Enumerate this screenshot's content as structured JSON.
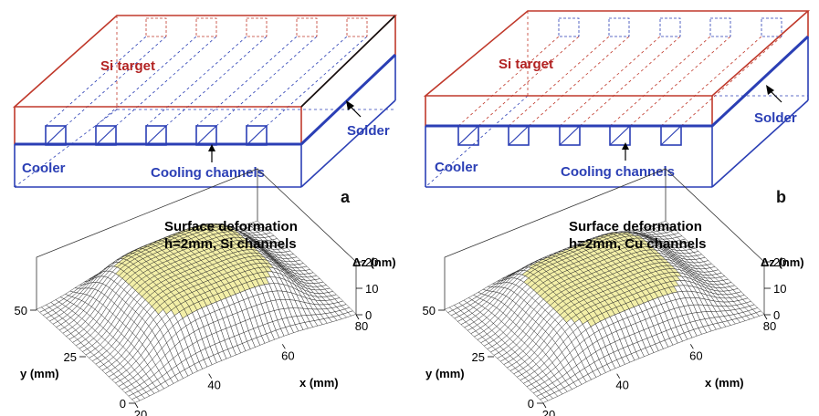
{
  "diagram_a": {
    "panel_label": "a",
    "target_label": "Si target",
    "solder_label": "Solder",
    "cooler_label": "Cooler",
    "channels_label": "Cooling channels"
  },
  "diagram_b": {
    "panel_label": "b",
    "target_label": "Si target",
    "solder_label": "Solder",
    "cooler_label": "Cooler",
    "channels_label": "Cooling channels"
  },
  "colors": {
    "target": "#c0392b",
    "cooler": "#2b3fb5",
    "surface_peak": "#f3efa8"
  },
  "plot_a": {
    "title_line1": "Surface deformation",
    "title_line2": "h=2mm, Si channels",
    "z_label": "Δz (nm)",
    "x_label": "x (mm)",
    "y_label": "y (mm)",
    "x_ticks": [
      "20",
      "40",
      "60",
      "80"
    ],
    "y_ticks": [
      "0",
      "25",
      "50"
    ],
    "z_ticks": [
      "0",
      "10",
      "20"
    ]
  },
  "plot_b": {
    "title_line1": "Surface deformation",
    "title_line2": "h=2mm, Cu channels",
    "z_label": "Δz (nm)",
    "x_label": "x (mm)",
    "y_label": "y (mm)",
    "x_ticks": [
      "20",
      "40",
      "60",
      "80"
    ],
    "y_ticks": [
      "0",
      "25",
      "50"
    ],
    "z_ticks": [
      "0",
      "10",
      "20"
    ]
  }
}
